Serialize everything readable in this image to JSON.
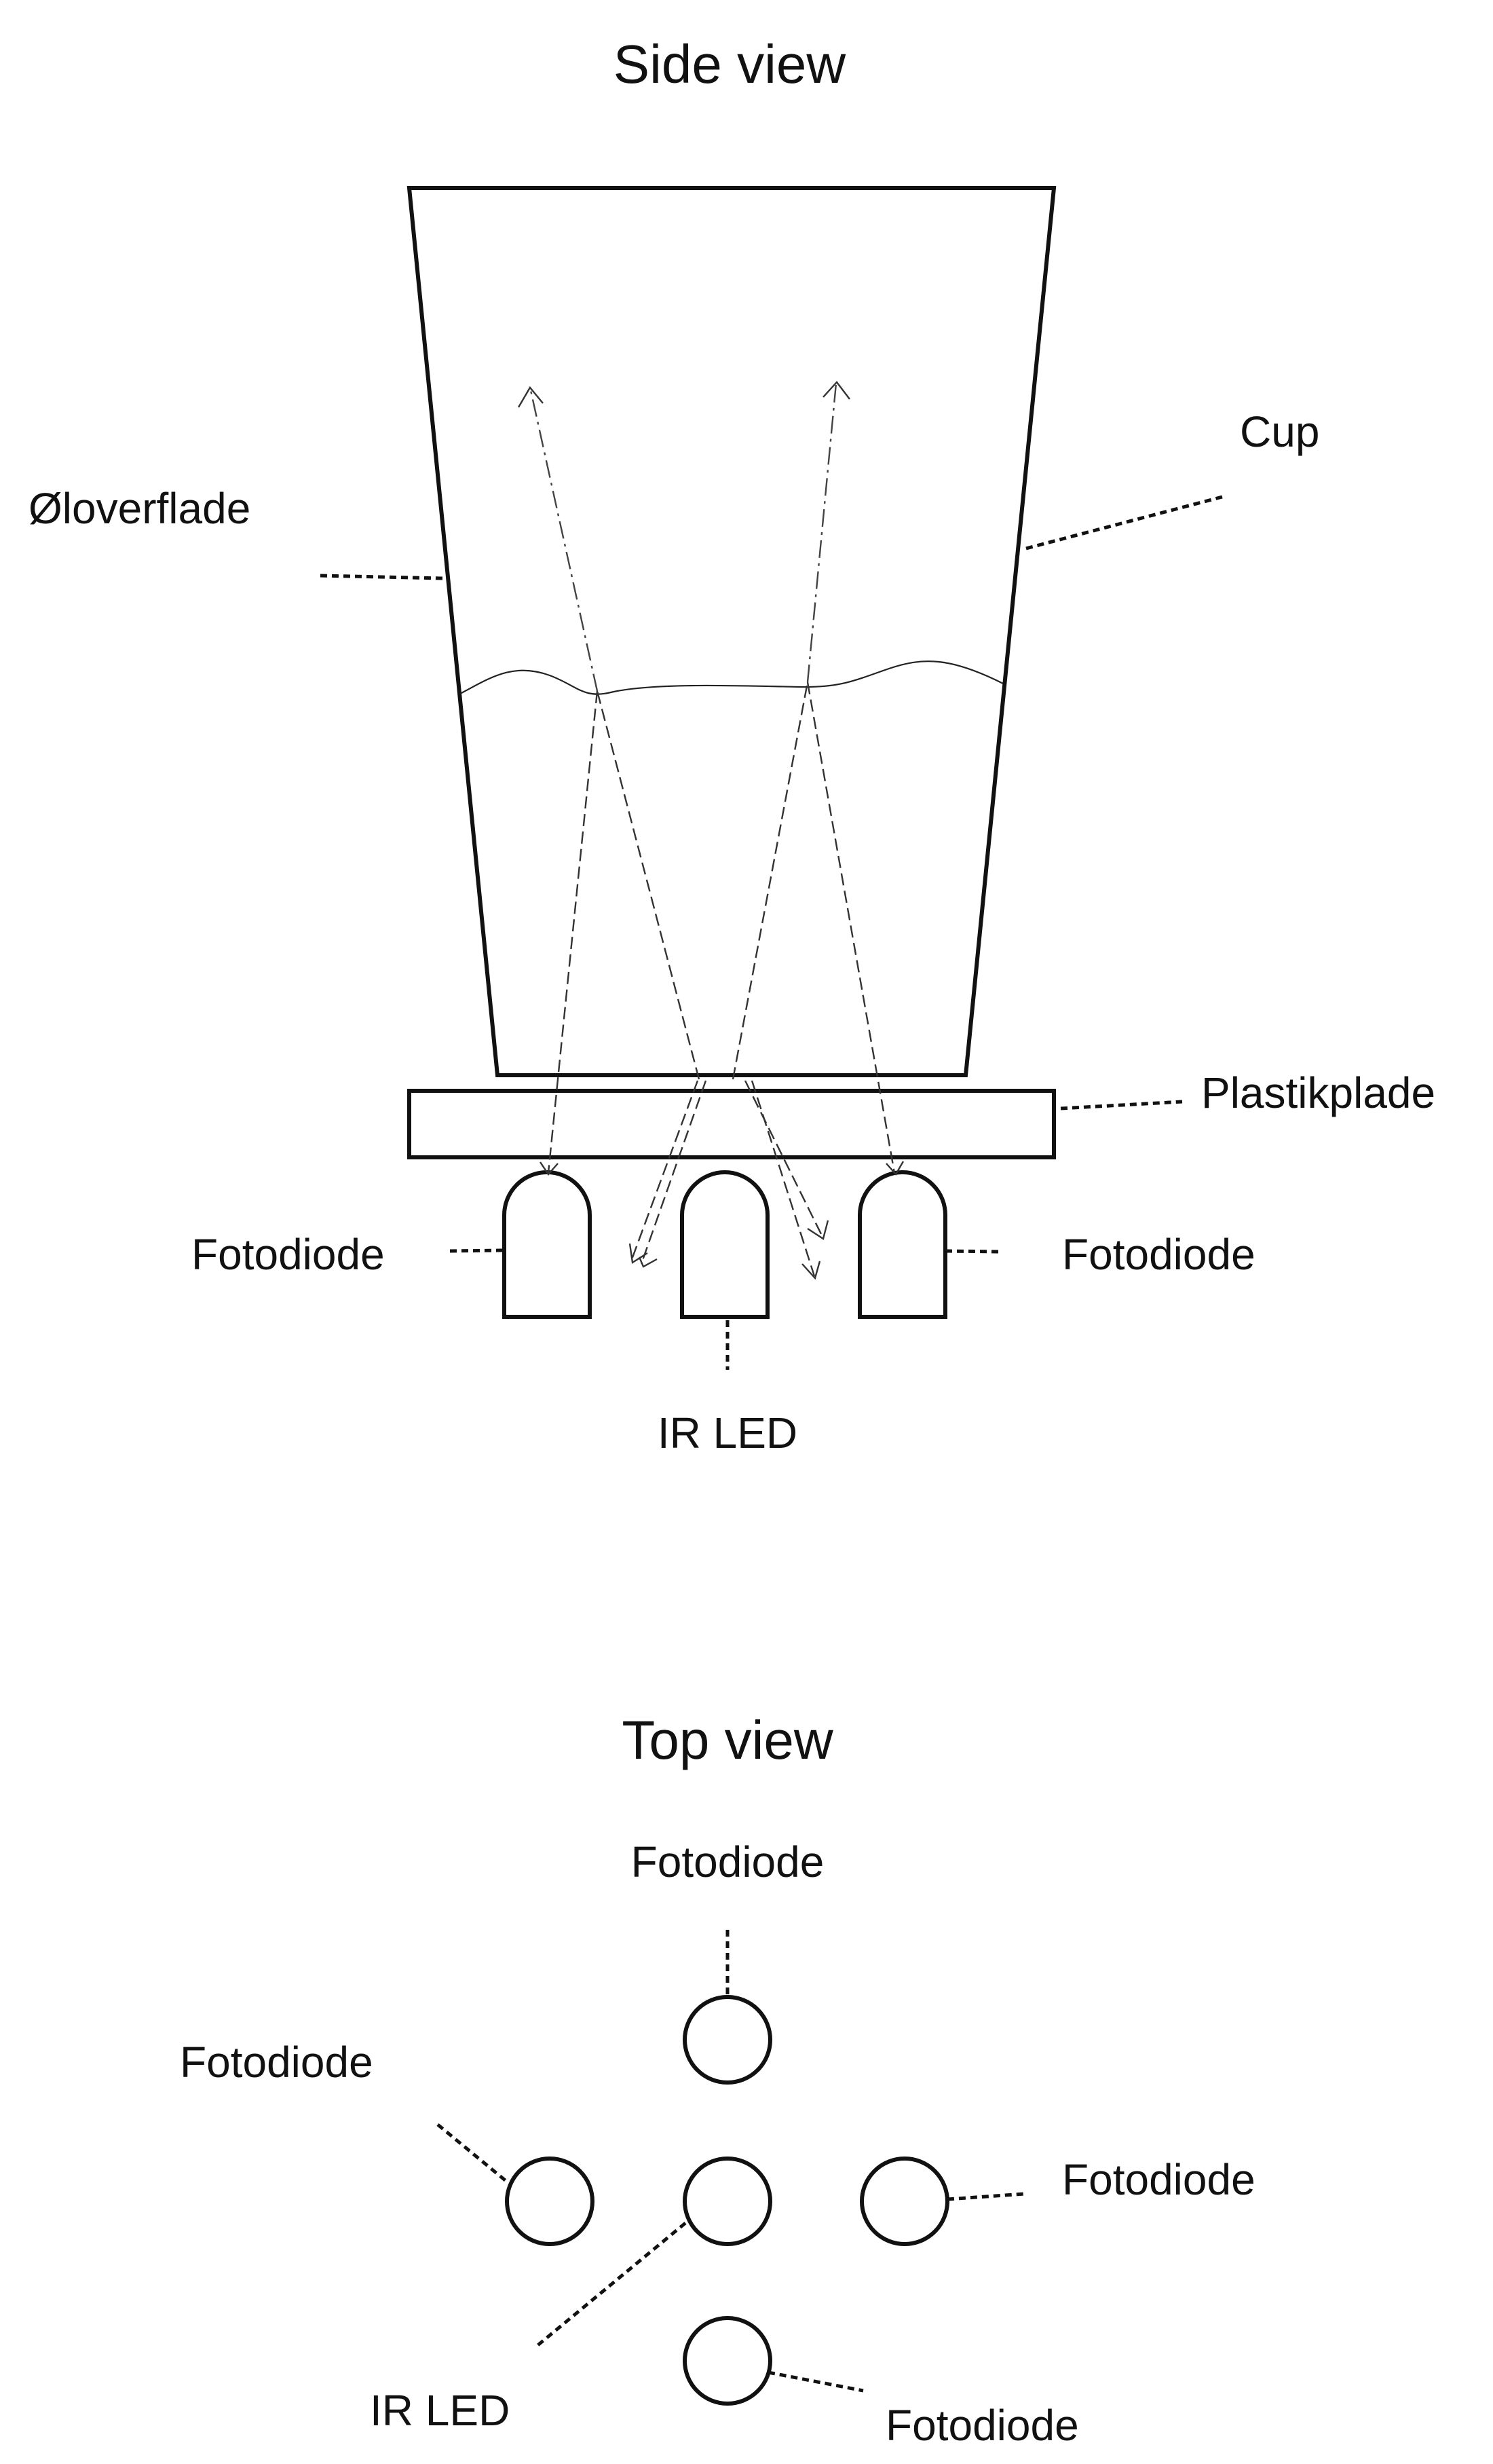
{
  "side_view": {
    "title": "Side view",
    "labels": {
      "oil_surface": "Øloverflade",
      "cup": "Cup",
      "plastic_plate": "Plastikplade",
      "photodiode_left": "Fotodiode",
      "photodiode_right": "Fotodiode",
      "ir_led": "IR LED"
    }
  },
  "top_view": {
    "title": "Top view",
    "labels": {
      "photodiode_top": "Fotodiode",
      "photodiode_left": "Fotodiode",
      "photodiode_right": "Fotodiode",
      "photodiode_bottom": "Fotodiode",
      "ir_led": "IR LED"
    }
  }
}
